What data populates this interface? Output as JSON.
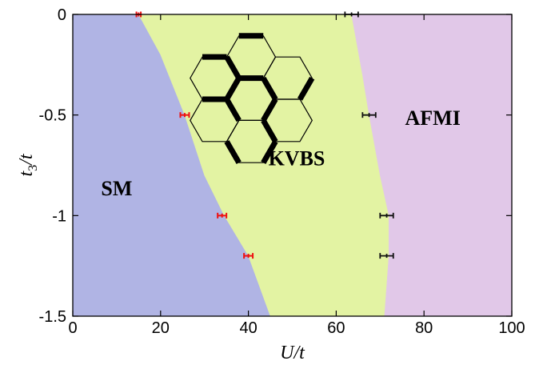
{
  "chart_data": {
    "type": "phase-diagram",
    "xlabel": "U/t",
    "ylabel": "t3/t",
    "xlim": [
      0,
      100
    ],
    "ylim": [
      -1.5,
      0
    ],
    "x_ticks": [
      0,
      20,
      40,
      60,
      80,
      100
    ],
    "y_ticks": [
      0,
      -0.5,
      -1,
      -1.5
    ],
    "x_tick_labels": [
      "0",
      "20",
      "40",
      "60",
      "80",
      "100"
    ],
    "y_tick_labels": [
      "0",
      "-0.5",
      "-1",
      "-1.5"
    ],
    "grid": false,
    "regions": [
      {
        "name": "SM",
        "color": "#b0b4e4",
        "label_at": [
          10,
          -0.9
        ]
      },
      {
        "name": "KVBS",
        "color": "#e3f3a3",
        "label_at": [
          51,
          -0.75
        ]
      },
      {
        "name": "AFMI",
        "color": "#e1c8e8",
        "label_at": [
          82,
          -0.55
        ]
      }
    ],
    "boundary_sm_kvbs": [
      {
        "x": 15,
        "y": 0
      },
      {
        "x": 20,
        "y": -0.2
      },
      {
        "x": 25.5,
        "y": -0.5
      },
      {
        "x": 30,
        "y": -0.8
      },
      {
        "x": 34.5,
        "y": -1
      },
      {
        "x": 40,
        "y": -1.2
      },
      {
        "x": 45,
        "y": -1.5
      }
    ],
    "boundary_kvbs_afmi": [
      {
        "x": 63.5,
        "y": 0
      },
      {
        "x": 66,
        "y": -0.3
      },
      {
        "x": 67.5,
        "y": -0.5
      },
      {
        "x": 70,
        "y": -0.8
      },
      {
        "x": 72,
        "y": -1
      },
      {
        "x": 72,
        "y": -1.2
      },
      {
        "x": 71,
        "y": -1.5
      }
    ],
    "series": [
      {
        "color": "#ee1111",
        "points": [
          {
            "x": 15,
            "y": 0,
            "xerr": 0.5
          },
          {
            "x": 25.5,
            "y": -0.5,
            "xerr": 1
          },
          {
            "x": 34,
            "y": -1,
            "xerr": 1
          },
          {
            "x": 40,
            "y": -1.2,
            "xerr": 1
          }
        ]
      },
      {
        "color": "#111111",
        "points": [
          {
            "x": 63.5,
            "y": 0,
            "xerr": 1.5
          },
          {
            "x": 67.5,
            "y": -0.5,
            "xerr": 1.5
          },
          {
            "x": 71.5,
            "y": -1,
            "xerr": 1.5
          },
          {
            "x": 71.5,
            "y": -1.2,
            "xerr": 1.5
          }
        ]
      }
    ]
  }
}
